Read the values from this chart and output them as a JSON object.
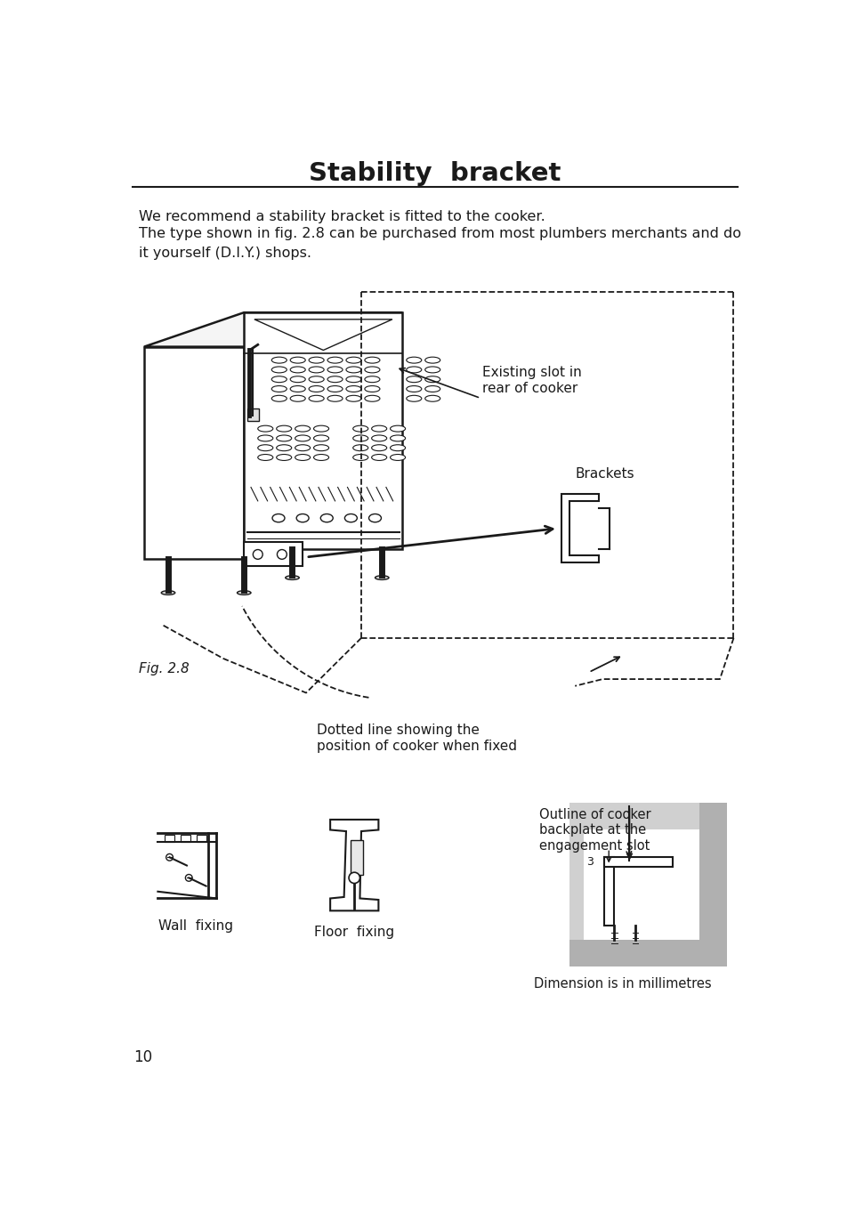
{
  "title": "Stability  bracket",
  "bg_color": "#ffffff",
  "text_color": "#1a1a1a",
  "line_color": "#1a1a1a",
  "para1": "We recommend a stability bracket is fitted to the cooker.",
  "para2": "The type shown in fig. 2.8 can be purchased from most plumbers merchants and do\nit yourself (D.I.Y.) shops.",
  "label_existing_slot": "Existing slot in\nrear of cooker",
  "label_brackets": "Brackets",
  "label_fig": "Fig. 2.8",
  "label_dotted": "Dotted line showing the\nposition of cooker when fixed",
  "label_outline": "Outline of cooker\nbackplate at the\nengagement slot",
  "label_wall": "Wall  fixing",
  "label_floor": "Floor  fixing",
  "label_dim": "Dimension is in millimetres",
  "page_num": "10",
  "dim_label": "3"
}
